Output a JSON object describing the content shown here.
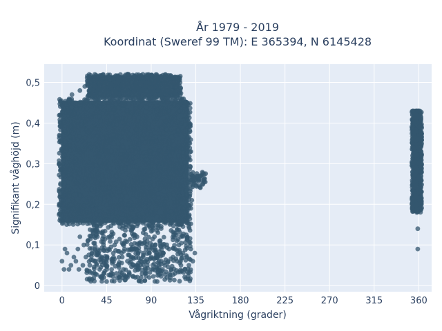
{
  "chart_data": {
    "type": "scatter",
    "title": "År 1979 - 2019",
    "subtitle": "Koordinat (Sweref 99 TM): E 365394, N 6145428",
    "xlabel": "Vågriktning (grader)",
    "ylabel": "Signifikant våghöjd (m)",
    "xlim": [
      -18,
      373
    ],
    "ylim": [
      -0.015,
      0.545
    ],
    "x_ticks": [
      0,
      45,
      90,
      135,
      180,
      225,
      270,
      315,
      360
    ],
    "x_tick_labels": [
      "0",
      "45",
      "90",
      "135",
      "180",
      "225",
      "270",
      "315",
      "360"
    ],
    "y_ticks": [
      0,
      0.1,
      0.2,
      0.3,
      0.4,
      0.5
    ],
    "y_tick_labels": [
      "0",
      "0,1",
      "0,2",
      "0,3",
      "0,4",
      "0,5"
    ],
    "grid": true,
    "legend": "none",
    "colors": {
      "marker": "#34576f",
      "plot_bg": "#e5ecf6"
    },
    "series": [
      {
        "clusters": [
          {
            "x_range": [
              -3,
              130
            ],
            "y_range": [
              0.15,
              0.46
            ],
            "density": "very dense"
          },
          {
            "x_range": [
              25,
              120
            ],
            "y_range": [
              0.46,
              0.52
            ],
            "density": "dense"
          },
          {
            "x_range": [
              130,
              145
            ],
            "y_range": [
              0.24,
              0.28
            ],
            "density": "sparse"
          },
          {
            "x_range": [
              25,
              130
            ],
            "y_range": [
              0.01,
              0.15
            ],
            "density": "medium"
          },
          {
            "x_range": [
              353,
              363
            ],
            "y_range": [
              0.18,
              0.43
            ],
            "density": "dense"
          }
        ],
        "points": [
          {
            "x": 0,
            "y": 0.06
          },
          {
            "x": 2,
            "y": 0.04
          },
          {
            "x": 3,
            "y": 0.09
          },
          {
            "x": 5,
            "y": 0.08
          },
          {
            "x": 7,
            "y": 0.04
          },
          {
            "x": 9,
            "y": 0.05
          },
          {
            "x": 12,
            "y": 0.07
          },
          {
            "x": 14,
            "y": 0.06
          },
          {
            "x": 16,
            "y": 0.09
          },
          {
            "x": 17,
            "y": 0.04
          },
          {
            "x": 18,
            "y": 0.12
          },
          {
            "x": 21,
            "y": 0.05
          },
          {
            "x": 22,
            "y": 0.1
          },
          {
            "x": 24,
            "y": 0.07
          },
          {
            "x": 26,
            "y": 0.11
          },
          {
            "x": 28,
            "y": 0.05
          },
          {
            "x": 30,
            "y": 0.08
          },
          {
            "x": 31,
            "y": 0.03
          },
          {
            "x": 33,
            "y": 0.06
          },
          {
            "x": 35,
            "y": 0.05
          },
          {
            "x": 38,
            "y": 0.04
          },
          {
            "x": 40,
            "y": 0.07
          },
          {
            "x": 42,
            "y": 0.03
          },
          {
            "x": 44,
            "y": 0.05
          },
          {
            "x": 45,
            "y": 0.01
          },
          {
            "x": 47,
            "y": 0.09
          },
          {
            "x": 48,
            "y": 0.12
          },
          {
            "x": 50,
            "y": 0.04
          },
          {
            "x": 52,
            "y": 0.07
          },
          {
            "x": 53,
            "y": 0.1
          },
          {
            "x": 55,
            "y": 0.03
          },
          {
            "x": 57,
            "y": 0.05
          },
          {
            "x": 58,
            "y": 0.02
          },
          {
            "x": 60,
            "y": 0.08
          },
          {
            "x": 62,
            "y": 0.04
          },
          {
            "x": 64,
            "y": 0.11
          },
          {
            "x": 66,
            "y": 0.06
          },
          {
            "x": 68,
            "y": 0.03
          },
          {
            "x": 70,
            "y": 0.07
          },
          {
            "x": 72,
            "y": 0.05
          },
          {
            "x": 74,
            "y": 0.02
          },
          {
            "x": 75,
            "y": 0.09
          },
          {
            "x": 77,
            "y": 0.04
          },
          {
            "x": 79,
            "y": 0.06
          },
          {
            "x": 80,
            "y": 0.01
          },
          {
            "x": 82,
            "y": 0.08
          },
          {
            "x": 84,
            "y": 0.03
          },
          {
            "x": 86,
            "y": 0.05
          },
          {
            "x": 88,
            "y": 0.02
          },
          {
            "x": 90,
            "y": 0.07
          },
          {
            "x": 92,
            "y": 0.04
          },
          {
            "x": 94,
            "y": 0.1
          },
          {
            "x": 96,
            "y": 0.01
          },
          {
            "x": 98,
            "y": 0.06
          },
          {
            "x": 100,
            "y": 0.03
          },
          {
            "x": 102,
            "y": 0.08
          },
          {
            "x": 104,
            "y": 0.05
          },
          {
            "x": 106,
            "y": 0.02
          },
          {
            "x": 108,
            "y": 0.09
          },
          {
            "x": 110,
            "y": 0.04
          },
          {
            "x": 112,
            "y": 0.07
          },
          {
            "x": 114,
            "y": 0.03
          },
          {
            "x": 116,
            "y": 0.06
          },
          {
            "x": 118,
            "y": 0.1
          },
          {
            "x": 120,
            "y": 0.05
          },
          {
            "x": 122,
            "y": 0.08
          },
          {
            "x": 124,
            "y": 0.04
          },
          {
            "x": 126,
            "y": 0.07
          },
          {
            "x": 128,
            "y": 0.05
          },
          {
            "x": 130,
            "y": 0.09
          },
          {
            "x": 132,
            "y": 0.06
          },
          {
            "x": 134,
            "y": 0.08
          },
          {
            "x": 132,
            "y": 0.27
          },
          {
            "x": 134,
            "y": 0.26
          },
          {
            "x": 136,
            "y": 0.27
          },
          {
            "x": 138,
            "y": 0.26
          },
          {
            "x": 140,
            "y": 0.27
          },
          {
            "x": 141,
            "y": 0.26
          },
          {
            "x": 143,
            "y": 0.26
          },
          {
            "x": 130,
            "y": 0.2
          },
          {
            "x": 130,
            "y": 0.19
          },
          {
            "x": 131,
            "y": 0.21
          },
          {
            "x": 129,
            "y": 0.35
          },
          {
            "x": 130,
            "y": 0.33
          },
          {
            "x": 125,
            "y": 0.42
          },
          {
            "x": 123,
            "y": 0.44
          },
          {
            "x": 120,
            "y": 0.45
          },
          {
            "x": 115,
            "y": 0.47
          },
          {
            "x": 110,
            "y": 0.48
          },
          {
            "x": 105,
            "y": 0.48
          },
          {
            "x": 95,
            "y": 0.49
          },
          {
            "x": 85,
            "y": 0.5
          },
          {
            "x": 78,
            "y": 0.5
          },
          {
            "x": 72,
            "y": 0.51
          },
          {
            "x": 66,
            "y": 0.52
          },
          {
            "x": 60,
            "y": 0.51
          },
          {
            "x": 55,
            "y": 0.5
          },
          {
            "x": 48,
            "y": 0.49
          },
          {
            "x": 40,
            "y": 0.48
          },
          {
            "x": 33,
            "y": 0.49
          },
          {
            "x": 28,
            "y": 0.48
          },
          {
            "x": 23,
            "y": 0.49
          },
          {
            "x": 18,
            "y": 0.48
          },
          {
            "x": 10,
            "y": 0.47
          },
          {
            "x": -2,
            "y": 0.4
          },
          {
            "x": -3,
            "y": 0.3
          },
          {
            "x": -2,
            "y": 0.2
          },
          {
            "x": -1,
            "y": 0.16
          },
          {
            "x": 360,
            "y": 0.43
          },
          {
            "x": 358,
            "y": 0.42
          },
          {
            "x": 359,
            "y": 0.09
          },
          {
            "x": 359,
            "y": 0.14
          },
          {
            "x": 358,
            "y": 0.18
          },
          {
            "x": 359,
            "y": 0.2
          },
          {
            "x": 355,
            "y": 0.27
          },
          {
            "x": 354,
            "y": 0.29
          },
          {
            "x": 356,
            "y": 0.4
          },
          {
            "x": 361,
            "y": 0.35
          },
          {
            "x": 362,
            "y": 0.3
          },
          {
            "x": 357,
            "y": 0.22
          }
        ]
      }
    ]
  }
}
